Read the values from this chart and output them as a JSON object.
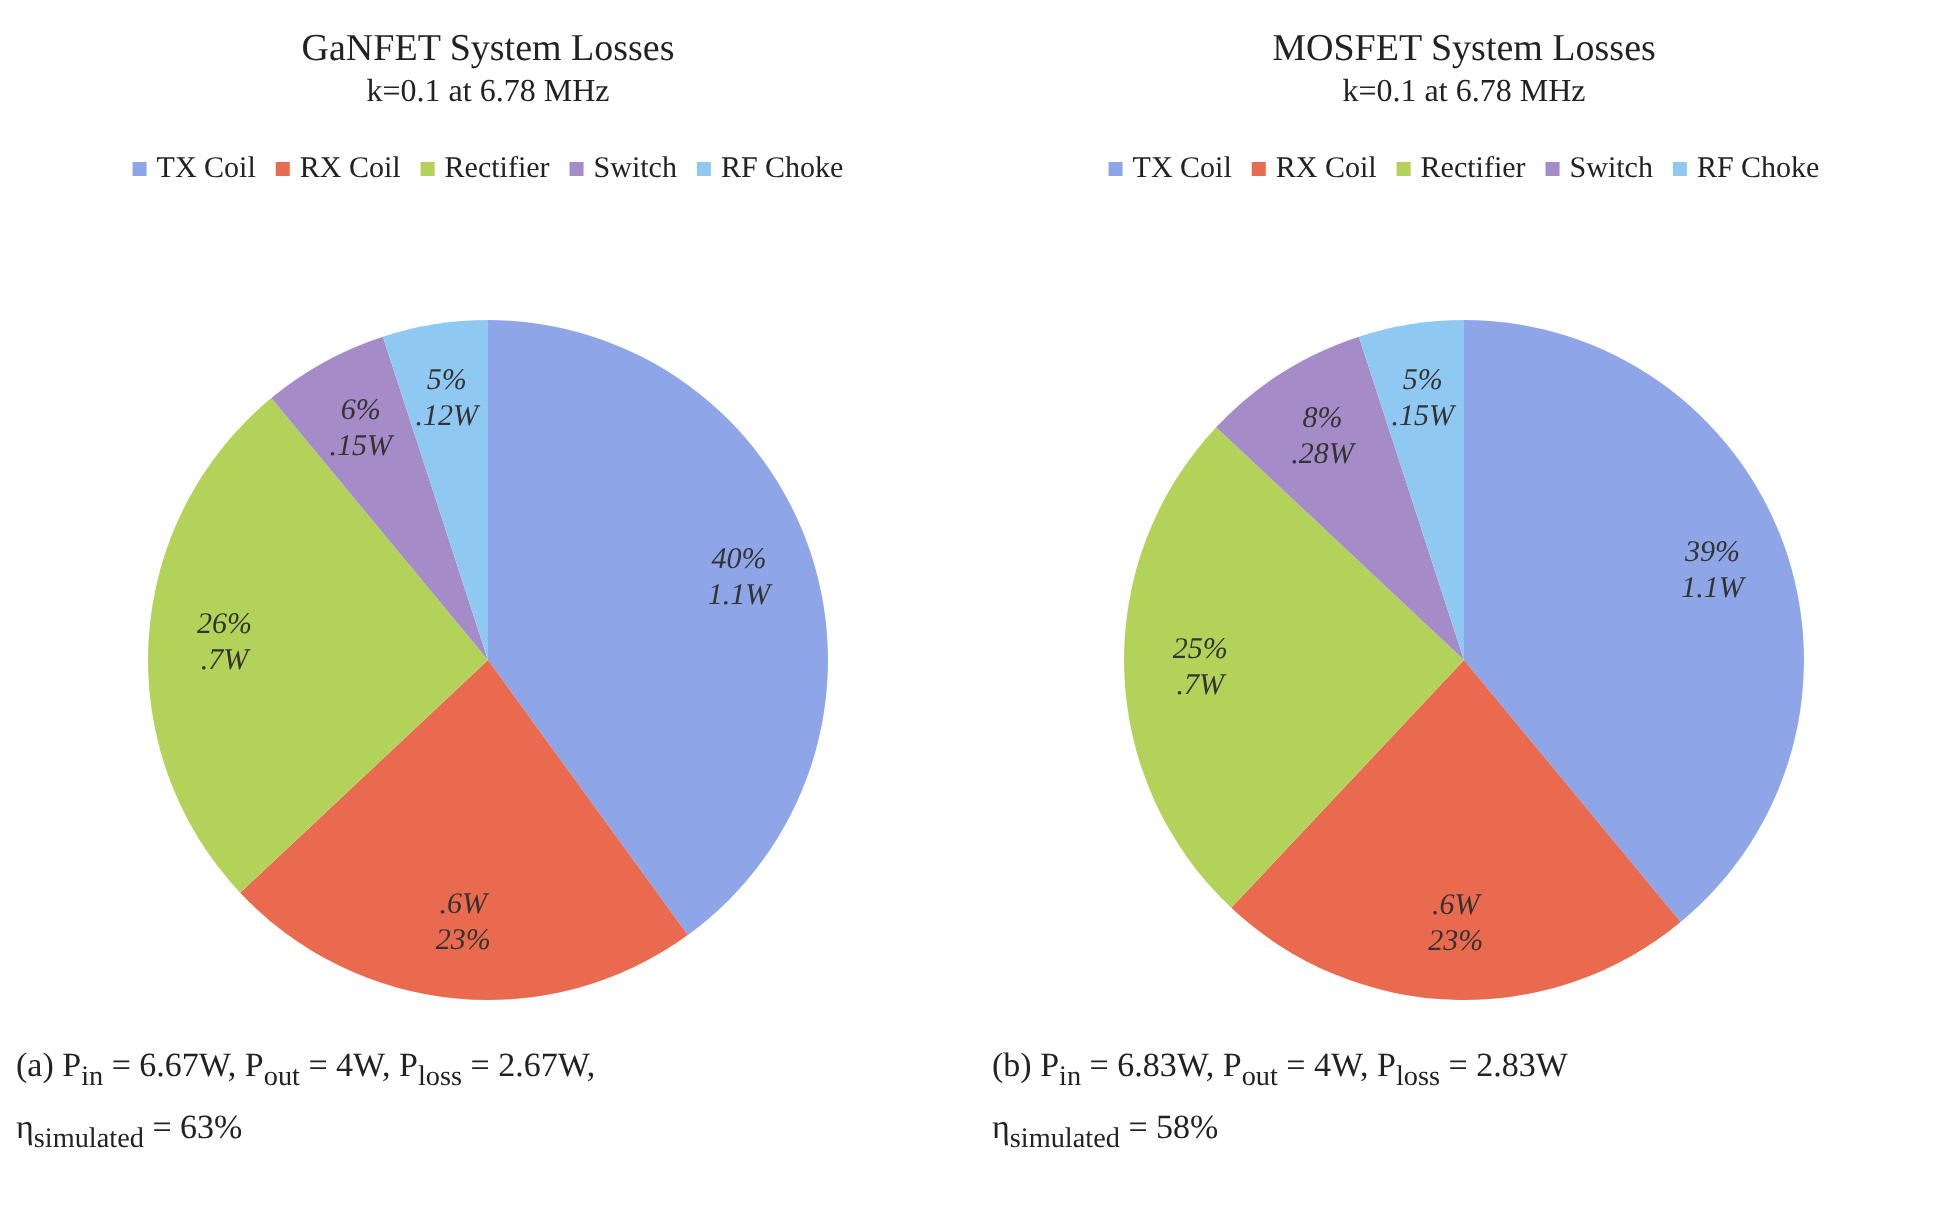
{
  "chart_data": [
    {
      "type": "pie",
      "title": "GaNFET System Losses",
      "subtitle": "k=0.1 at 6.78 MHz",
      "categories": [
        "TX Coil",
        "RX Coil",
        "Rectifier",
        "Switch",
        "RF Choke"
      ],
      "values": [
        40,
        23,
        26,
        6,
        5
      ],
      "colors": [
        "#8ea5e8",
        "#ea6a50",
        "#b3d25a",
        "#a68bc9",
        "#8fc9f2"
      ],
      "value_labels": [
        "40%\n1.1W",
        ".6W\n23%",
        "26%\n.7W",
        "6%\n.15W",
        "5%\n.12W"
      ],
      "legend": "top",
      "annotations": [
        "(a) P$_{in}$ = 6.67W, P$_{out}$ = 4W, P$_{loss}$ = 2.67W,",
        "η$_{simulated}$ = 63%"
      ]
    },
    {
      "type": "pie",
      "title": "MOSFET System Losses",
      "subtitle": "k=0.1 at 6.78 MHz",
      "categories": [
        "TX Coil",
        "RX Coil",
        "Rectifier",
        "Switch",
        "RF Choke"
      ],
      "values": [
        39,
        23,
        25,
        8,
        5
      ],
      "colors": [
        "#8ea5e8",
        "#ea6a50",
        "#b3d25a",
        "#a68bc9",
        "#8fc9f2"
      ],
      "value_labels": [
        "39%\n1.1W",
        ".6W\n23%",
        "25%\n.7W",
        "8%\n.28W",
        "5%\n.15W"
      ],
      "legend": "top",
      "annotations": [
        "(b) P$_{in}$ = 6.83W, P$_{out}$ = 4W, P$_{loss}$ = 2.83W",
        "η$_{simulated}$ = 58%"
      ]
    }
  ]
}
